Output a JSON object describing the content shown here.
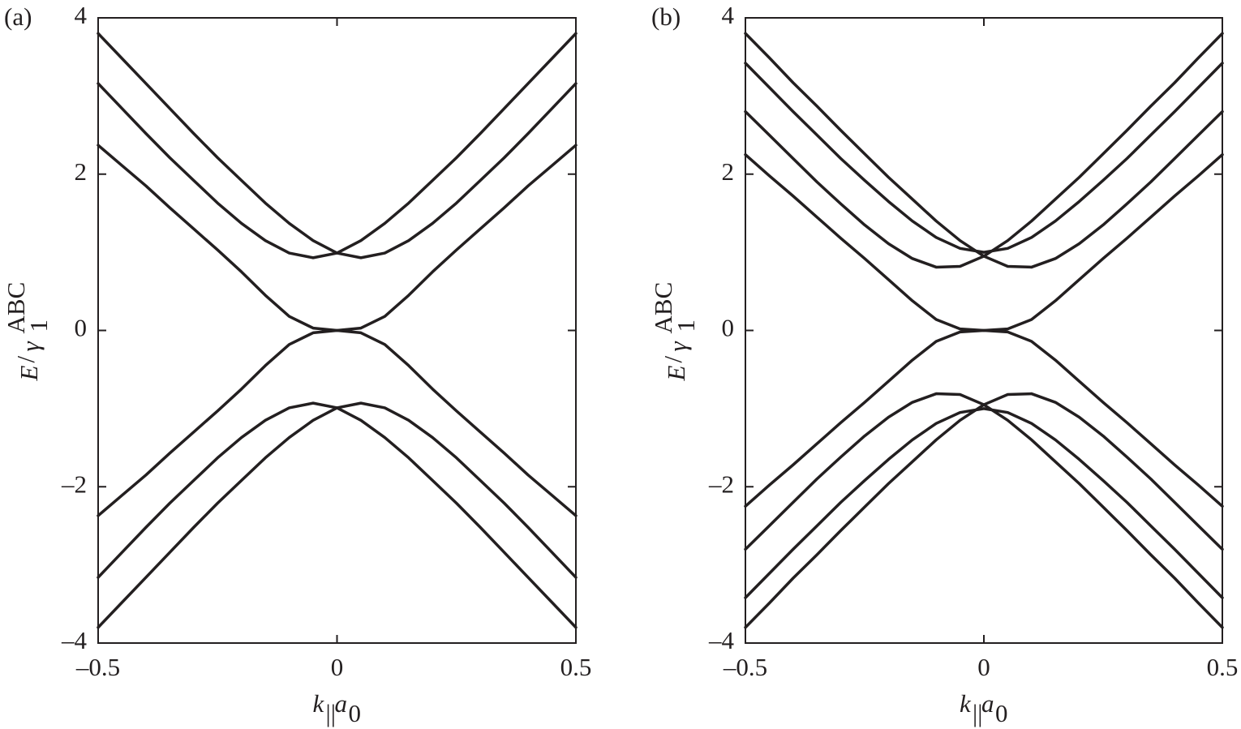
{
  "chart_data": [
    {
      "type": "line",
      "label": "(a)",
      "x": [
        -0.5,
        -0.45,
        -0.4,
        -0.35,
        -0.3,
        -0.25,
        -0.2,
        -0.15,
        -0.1,
        -0.05,
        0,
        0.05,
        0.1,
        0.15,
        0.2,
        0.25,
        0.3,
        0.35,
        0.4,
        0.45,
        0.5
      ],
      "series": [
        {
          "color": "#231f20",
          "values": [
            3.16,
            2.84,
            2.52,
            2.21,
            1.92,
            1.63,
            1.37,
            1.15,
            0.99,
            0.93,
            0.99,
            1.15,
            1.37,
            1.63,
            1.92,
            2.21,
            2.52,
            2.84,
            3.16,
            3.48,
            3.8
          ]
        },
        {
          "color": "#231f20",
          "values": [
            3.8,
            3.48,
            3.16,
            2.84,
            2.52,
            2.21,
            1.92,
            1.63,
            1.37,
            1.15,
            0.99,
            0.93,
            0.99,
            1.15,
            1.37,
            1.63,
            1.92,
            2.21,
            2.52,
            2.84,
            3.16
          ]
        },
        {
          "color": "#231f20",
          "values": [
            2.37,
            2.11,
            1.85,
            1.57,
            1.3,
            1.03,
            0.75,
            0.45,
            0.18,
            0.03,
            0,
            0.03,
            0.18,
            0.45,
            0.75,
            1.03,
            1.3,
            1.57,
            1.85,
            2.11,
            2.37
          ]
        },
        {
          "color": "#231f20",
          "values": [
            -2.37,
            -2.11,
            -1.85,
            -1.57,
            -1.3,
            -1.03,
            -0.75,
            -0.45,
            -0.18,
            -0.03,
            0,
            -0.03,
            -0.18,
            -0.45,
            -0.75,
            -1.03,
            -1.3,
            -1.57,
            -1.85,
            -2.11,
            -2.37
          ]
        },
        {
          "color": "#231f20",
          "values": [
            -3.16,
            -2.84,
            -2.52,
            -2.21,
            -1.92,
            -1.63,
            -1.37,
            -1.15,
            -0.99,
            -0.93,
            -0.99,
            -1.15,
            -1.37,
            -1.63,
            -1.92,
            -2.21,
            -2.52,
            -2.84,
            -3.16,
            -3.48,
            -3.8
          ]
        },
        {
          "color": "#231f20",
          "values": [
            -3.8,
            -3.48,
            -3.16,
            -2.84,
            -2.52,
            -2.21,
            -1.92,
            -1.63,
            -1.37,
            -1.15,
            -0.99,
            -0.93,
            -0.99,
            -1.15,
            -1.37,
            -1.63,
            -1.92,
            -2.21,
            -2.52,
            -2.84,
            -3.16
          ]
        }
      ],
      "xlim": [
        -0.5,
        0.5
      ],
      "ylim": [
        -4,
        4
      ],
      "xticks": [
        {
          "value": -0.5,
          "label": "–0.5"
        },
        0,
        0.5
      ],
      "yticks": [
        {
          "value": -4,
          "label": "–4"
        },
        {
          "value": -2,
          "label": "–2"
        },
        0,
        2,
        4
      ],
      "xlabel": [
        "k",
        "||",
        "a",
        "0"
      ],
      "ylabel": [
        "E",
        "/",
        "γ",
        "1",
        "ABC"
      ]
    },
    {
      "type": "line",
      "label": "(b)",
      "x": [
        -0.5,
        -0.45,
        -0.4,
        -0.35,
        -0.3,
        -0.25,
        -0.2,
        -0.15,
        -0.1,
        -0.05,
        0,
        0.05,
        0.1,
        0.15,
        0.2,
        0.25,
        0.3,
        0.35,
        0.4,
        0.45,
        0.5
      ],
      "series": [
        {
          "color": "#231f20",
          "values": [
            2.8,
            2.5,
            2.2,
            1.9,
            1.62,
            1.35,
            1.11,
            0.92,
            0.81,
            0.82,
            0.95,
            1.15,
            1.4,
            1.68,
            1.96,
            2.26,
            2.56,
            2.87,
            3.17,
            3.49,
            3.8
          ]
        },
        {
          "color": "#231f20",
          "values": [
            3.8,
            3.49,
            3.17,
            2.87,
            2.56,
            2.26,
            1.96,
            1.68,
            1.4,
            1.15,
            0.95,
            0.82,
            0.81,
            0.92,
            1.11,
            1.35,
            1.62,
            1.9,
            2.2,
            2.5,
            2.8
          ]
        },
        {
          "color": "#231f20",
          "values": [
            3.42,
            3.11,
            2.8,
            2.5,
            2.2,
            1.92,
            1.65,
            1.4,
            1.19,
            1.05,
            1,
            1.05,
            1.19,
            1.4,
            1.65,
            1.92,
            2.2,
            2.5,
            2.8,
            3.11,
            3.42
          ]
        },
        {
          "color": "#231f20",
          "values": [
            2.25,
            1.98,
            1.72,
            1.45,
            1.18,
            0.92,
            0.65,
            0.38,
            0.14,
            0.02,
            0,
            0.02,
            0.14,
            0.38,
            0.65,
            0.92,
            1.18,
            1.45,
            1.72,
            1.98,
            2.25
          ]
        },
        {
          "color": "#231f20",
          "values": [
            -2.25,
            -1.98,
            -1.72,
            -1.45,
            -1.18,
            -0.92,
            -0.65,
            -0.38,
            -0.14,
            -0.02,
            0,
            -0.02,
            -0.14,
            -0.38,
            -0.65,
            -0.92,
            -1.18,
            -1.45,
            -1.72,
            -1.98,
            -2.25
          ]
        },
        {
          "color": "#231f20",
          "values": [
            -3.42,
            -3.11,
            -2.8,
            -2.5,
            -2.2,
            -1.92,
            -1.65,
            -1.4,
            -1.19,
            -1.05,
            -1,
            -1.05,
            -1.19,
            -1.4,
            -1.65,
            -1.92,
            -2.2,
            -2.5,
            -2.8,
            -3.11,
            -3.42
          ]
        },
        {
          "color": "#231f20",
          "values": [
            -2.8,
            -2.5,
            -2.2,
            -1.9,
            -1.62,
            -1.35,
            -1.11,
            -0.92,
            -0.81,
            -0.82,
            -0.95,
            -1.15,
            -1.4,
            -1.68,
            -1.96,
            -2.26,
            -2.56,
            -2.87,
            -3.17,
            -3.49,
            -3.8
          ]
        },
        {
          "color": "#231f20",
          "values": [
            -3.8,
            -3.49,
            -3.17,
            -2.87,
            -2.56,
            -2.26,
            -1.96,
            -1.68,
            -1.4,
            -1.15,
            -0.95,
            -0.82,
            -0.81,
            -0.92,
            -1.11,
            -1.35,
            -1.62,
            -1.9,
            -2.2,
            -2.5,
            -2.8
          ]
        }
      ],
      "xlim": [
        -0.5,
        0.5
      ],
      "ylim": [
        -4,
        4
      ],
      "xticks": [
        {
          "value": -0.5,
          "label": "–0.5"
        },
        0,
        0.5
      ],
      "yticks": [
        {
          "value": -4,
          "label": "–4"
        },
        {
          "value": -2,
          "label": "–2"
        },
        0,
        2,
        4
      ],
      "xlabel": [
        "k",
        "||",
        "a",
        "0"
      ],
      "ylabel": [
        "E",
        "/",
        "γ",
        "1",
        "ABC"
      ]
    }
  ]
}
